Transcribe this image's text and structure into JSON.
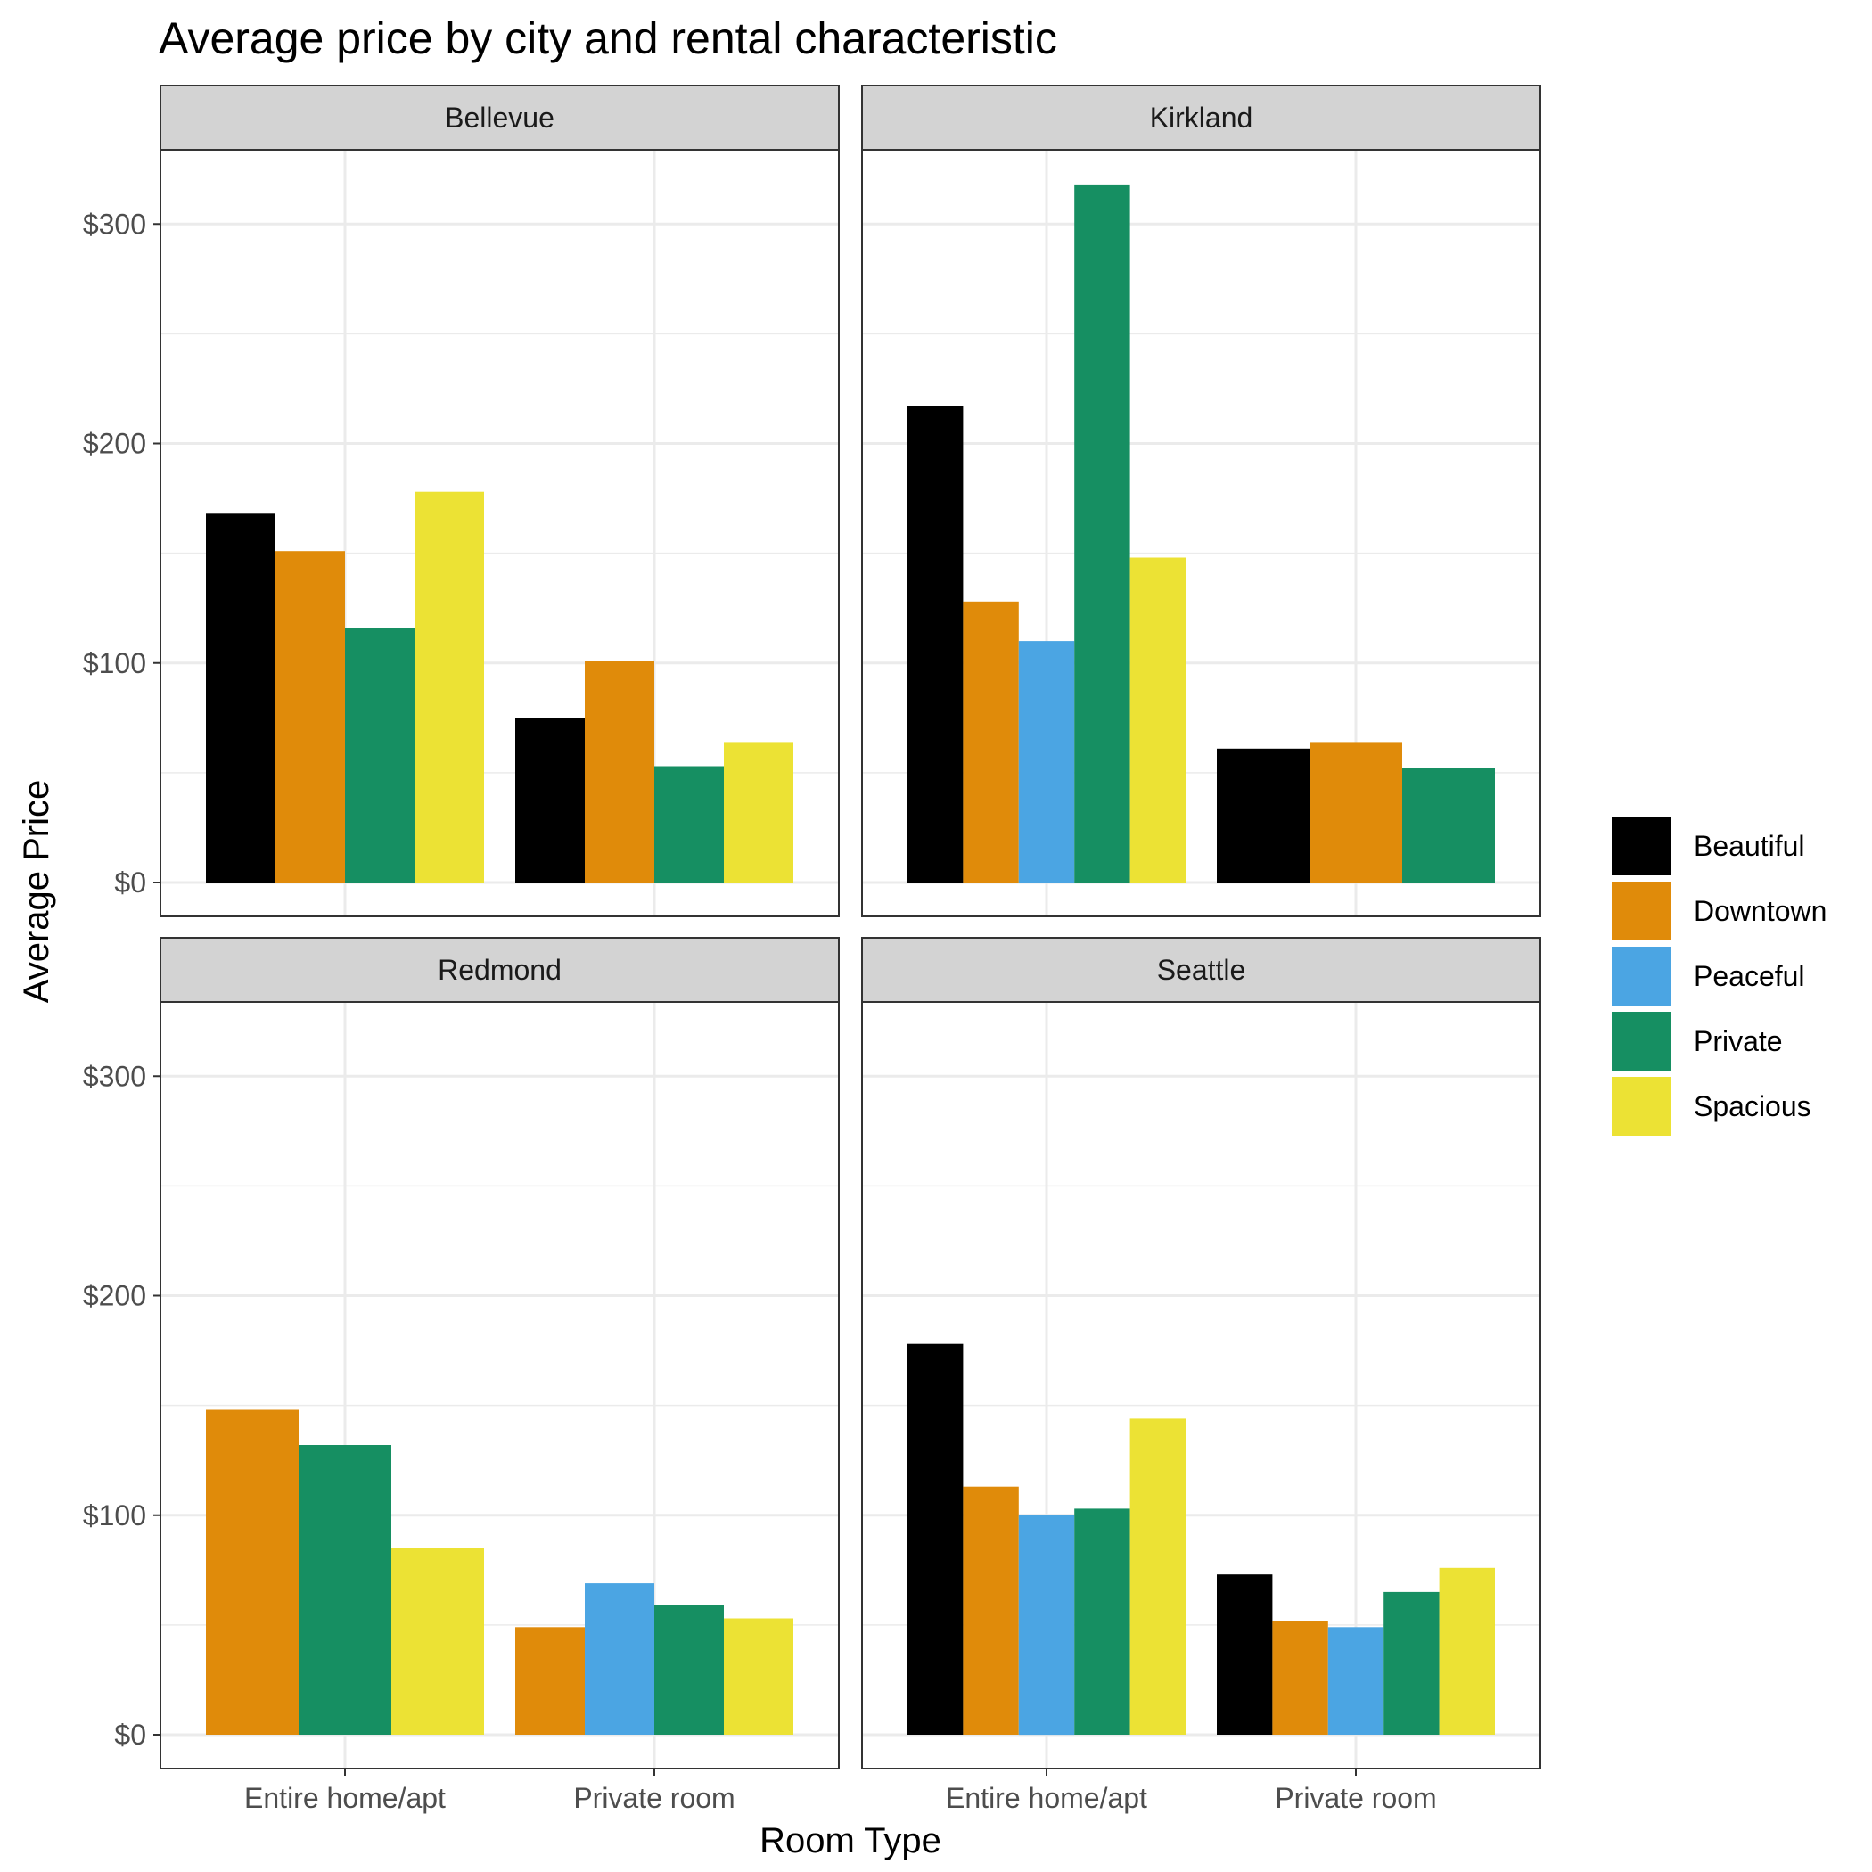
{
  "chart_data": {
    "type": "bar",
    "title": "Average price by city and rental characteristic",
    "xlabel": "Room Type",
    "ylabel": "Average Price",
    "ylim": [
      0,
      330
    ],
    "y_ticks": [
      {
        "value": 0,
        "label": "$0"
      },
      {
        "value": 100,
        "label": "$100"
      },
      {
        "value": 200,
        "label": "$200"
      },
      {
        "value": 300,
        "label": "$300"
      }
    ],
    "grid": true,
    "legend_position": "right",
    "categories": [
      "Entire home/apt",
      "Private room"
    ],
    "legend": [
      {
        "name": "Beautiful",
        "color": "#000000"
      },
      {
        "name": "Downtown",
        "color": "#E08B0A"
      },
      {
        "name": "Peaceful",
        "color": "#4BA5E3"
      },
      {
        "name": "Private",
        "color": "#168F62"
      },
      {
        "name": "Spacious",
        "color": "#ECE234"
      }
    ],
    "panels": [
      {
        "name": "Bellevue",
        "groups": [
          {
            "category": "Entire home/apt",
            "bars": [
              {
                "series": "Beautiful",
                "value": 168
              },
              {
                "series": "Downtown",
                "value": 151
              },
              {
                "series": "Private",
                "value": 116
              },
              {
                "series": "Spacious",
                "value": 178
              }
            ]
          },
          {
            "category": "Private room",
            "bars": [
              {
                "series": "Beautiful",
                "value": 75
              },
              {
                "series": "Downtown",
                "value": 101
              },
              {
                "series": "Private",
                "value": 53
              },
              {
                "series": "Spacious",
                "value": 64
              }
            ]
          }
        ]
      },
      {
        "name": "Kirkland",
        "groups": [
          {
            "category": "Entire home/apt",
            "bars": [
              {
                "series": "Beautiful",
                "value": 217
              },
              {
                "series": "Downtown",
                "value": 128
              },
              {
                "series": "Peaceful",
                "value": 110
              },
              {
                "series": "Private",
                "value": 318
              },
              {
                "series": "Spacious",
                "value": 148
              }
            ]
          },
          {
            "category": "Private room",
            "bars": [
              {
                "series": "Beautiful",
                "value": 61
              },
              {
                "series": "Downtown",
                "value": 64
              },
              {
                "series": "Private",
                "value": 52
              }
            ]
          }
        ]
      },
      {
        "name": "Redmond",
        "groups": [
          {
            "category": "Entire home/apt",
            "bars": [
              {
                "series": "Downtown",
                "value": 148
              },
              {
                "series": "Private",
                "value": 132
              },
              {
                "series": "Spacious",
                "value": 85
              }
            ]
          },
          {
            "category": "Private room",
            "bars": [
              {
                "series": "Downtown",
                "value": 49
              },
              {
                "series": "Peaceful",
                "value": 69
              },
              {
                "series": "Private",
                "value": 59
              },
              {
                "series": "Spacious",
                "value": 53
              }
            ]
          }
        ]
      },
      {
        "name": "Seattle",
        "groups": [
          {
            "category": "Entire home/apt",
            "bars": [
              {
                "series": "Beautiful",
                "value": 178
              },
              {
                "series": "Downtown",
                "value": 113
              },
              {
                "series": "Peaceful",
                "value": 100
              },
              {
                "series": "Private",
                "value": 103
              },
              {
                "series": "Spacious",
                "value": 144
              }
            ]
          },
          {
            "category": "Private room",
            "bars": [
              {
                "series": "Beautiful",
                "value": 73
              },
              {
                "series": "Downtown",
                "value": 52
              },
              {
                "series": "Peaceful",
                "value": 49
              },
              {
                "series": "Private",
                "value": 65
              },
              {
                "series": "Spacious",
                "value": 76
              }
            ]
          }
        ]
      }
    ]
  }
}
